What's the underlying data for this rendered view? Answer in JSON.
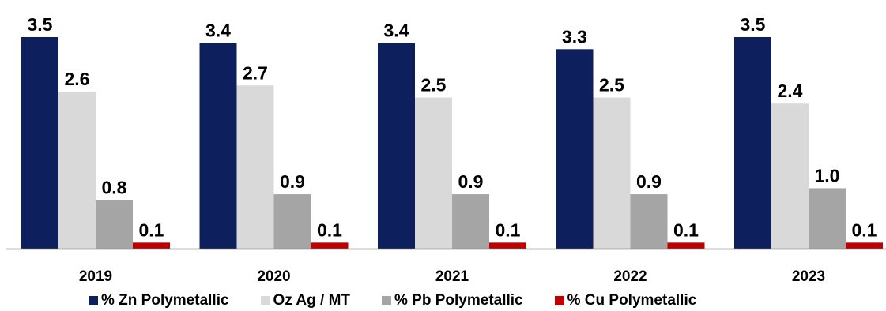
{
  "chart_data": {
    "type": "bar",
    "categories": [
      "2019",
      "2020",
      "2021",
      "2022",
      "2023"
    ],
    "series": [
      {
        "name": "% Zn Polymetallic",
        "values": [
          3.5,
          3.4,
          3.4,
          3.3,
          3.5
        ],
        "color": "#0d1f5c"
      },
      {
        "name": "Oz Ag / MT",
        "values": [
          2.6,
          2.7,
          2.5,
          2.5,
          2.4
        ],
        "color": "#d9d9d9"
      },
      {
        "name": "% Pb Polymetallic",
        "values": [
          0.8,
          0.9,
          0.9,
          0.9,
          1.0
        ],
        "color": "#a5a5a5"
      },
      {
        "name": "% Cu Polymetallic",
        "values": [
          0.1,
          0.1,
          0.1,
          0.1,
          0.1
        ],
        "color": "#c00000"
      }
    ],
    "value_labels": [
      [
        "3.5",
        "2.6",
        "0.8",
        "0.1"
      ],
      [
        "3.4",
        "2.7",
        "0.9",
        "0.1"
      ],
      [
        "3.4",
        "2.5",
        "0.9",
        "0.1"
      ],
      [
        "3.3",
        "2.5",
        "0.9",
        "0.1"
      ],
      [
        "3.5",
        "2.4",
        "1.0",
        "0.1"
      ]
    ],
    "ylim": [
      0,
      3.5
    ],
    "grid": false,
    "legend_position": "bottom",
    "title": "",
    "xlabel": "",
    "ylabel": ""
  }
}
